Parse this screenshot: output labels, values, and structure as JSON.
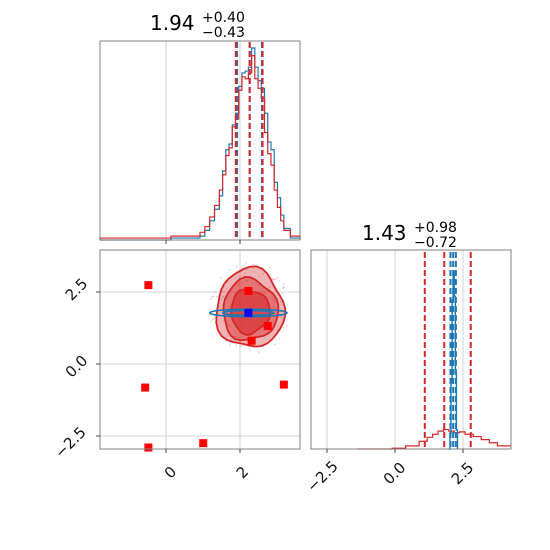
{
  "chart_data": [
    {
      "panel": "marginal-x",
      "type": "histogram",
      "title": {
        "main": "1.94",
        "plus": "+0.40",
        "minus": "−0.43"
      },
      "xlim": [
        -2.7,
        3.5
      ],
      "quantile_lines": {
        "red": [
          1.51,
          1.94,
          2.34
        ],
        "blue": [
          1.55,
          1.94,
          2.32
        ]
      },
      "bin_edges": [
        -2.7,
        -1.7,
        -0.5,
        0.4,
        0.55,
        0.7,
        0.85,
        1.0,
        1.1,
        1.2,
        1.3,
        1.4,
        1.5,
        1.6,
        1.7,
        1.8,
        1.9,
        2.0,
        2.1,
        2.2,
        2.3,
        2.4,
        2.5,
        2.6,
        2.7,
        2.8,
        2.9,
        3.0,
        3.2,
        3.5
      ],
      "series": [
        {
          "name": "",
          "color": "#1f77b4",
          "values": [
            0,
            0,
            0.01,
            0.02,
            0.05,
            0.1,
            0.16,
            0.23,
            0.36,
            0.47,
            0.5,
            0.6,
            0.66,
            0.8,
            0.87,
            0.88,
            0.9,
            1.0,
            0.9,
            0.83,
            0.79,
            0.66,
            0.51,
            0.47,
            0.3,
            0.22,
            0.13,
            0.06,
            0.01
          ]
        },
        {
          "name": "",
          "color": "#d62728",
          "values": [
            0.01,
            0.01,
            0.02,
            0.04,
            0.07,
            0.12,
            0.18,
            0.26,
            0.34,
            0.44,
            0.48,
            0.59,
            0.63,
            0.78,
            0.85,
            0.84,
            0.87,
            0.96,
            0.84,
            0.79,
            0.74,
            0.56,
            0.45,
            0.39,
            0.26,
            0.17,
            0.1,
            0.05,
            0.02
          ]
        }
      ]
    },
    {
      "panel": "joint",
      "type": "contour",
      "xlim": [
        -2.7,
        3.5
      ],
      "ylim": [
        -2.9,
        3.9
      ],
      "xticks": [
        0,
        2
      ],
      "yticks": [
        2.5,
        0.0,
        -2.5
      ],
      "ytick_labels": [
        "2.5",
        "0.0",
        "−2.5"
      ],
      "red_points": [
        {
          "x": -1.2,
          "y": 2.7
        },
        {
          "x": -1.3,
          "y": -0.8
        },
        {
          "x": -1.2,
          "y": -2.85
        },
        {
          "x": 0.5,
          "y": -2.7
        },
        {
          "x": 3.0,
          "y": -0.7
        },
        {
          "x": 1.9,
          "y": 2.5
        },
        {
          "x": 2.5,
          "y": 1.3
        },
        {
          "x": 2.0,
          "y": 0.8
        }
      ],
      "blue_point": {
        "x": 1.9,
        "y": 1.75
      },
      "red_contours": [
        {
          "cx": 1.95,
          "cy": 1.9,
          "rx": 1.05,
          "ry": 1.35,
          "fill_opacity": 0.35
        },
        {
          "cx": 1.95,
          "cy": 1.85,
          "rx": 0.85,
          "ry": 1.05,
          "fill_opacity": 0.45
        },
        {
          "cx": 1.95,
          "cy": 1.8,
          "rx": 0.6,
          "ry": 0.75,
          "fill_opacity": 0.6
        }
      ],
      "blue_contours": [
        {
          "cx": 1.9,
          "cy": 1.75,
          "rx": 1.2,
          "ry": 0.13
        },
        {
          "cx": 1.9,
          "cy": 1.75,
          "rx": 0.8,
          "ry": 0.08
        }
      ],
      "colors": {
        "red": "#d62728",
        "blue": "#1f77b4",
        "point": "#ff0000",
        "blue_point": "#0000ff"
      }
    },
    {
      "panel": "marginal-y",
      "type": "histogram",
      "title": {
        "main": "1.43",
        "plus": "+0.98",
        "minus": "−0.72"
      },
      "xlim": [
        -3.5,
        3.9
      ],
      "xticks": [
        -2.5,
        0.0,
        2.5
      ],
      "xtick_labels": [
        "−2.5",
        "0.0",
        "2.5"
      ],
      "quantile_lines": {
        "red": [
          0.71,
          1.43,
          2.41
        ],
        "blue": [
          1.66,
          1.76,
          1.86
        ]
      },
      "red_curve": {
        "x": [
          -1.8,
          -0.5,
          0.0,
          0.5,
          0.8,
          1.0,
          1.2,
          1.4,
          1.6,
          1.8,
          2.0,
          2.2,
          2.5,
          2.8,
          3.1,
          3.4,
          3.9
        ],
        "y": [
          0.0,
          0.002,
          0.008,
          0.02,
          0.03,
          0.038,
          0.046,
          0.05,
          0.046,
          0.042,
          0.044,
          0.038,
          0.032,
          0.024,
          0.016,
          0.008,
          0.003
        ]
      },
      "blue_peak": {
        "center": 1.76,
        "width": 0.1,
        "height": 0.93
      }
    }
  ]
}
